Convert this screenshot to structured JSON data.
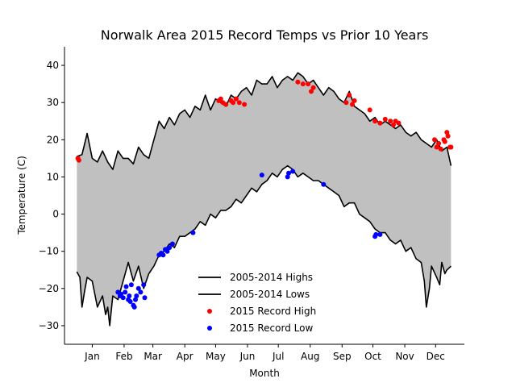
{
  "chart_data": {
    "type": "line",
    "title": "Norwalk Area 2015 Record Temps vs Prior 10 Years",
    "xlabel": "Month",
    "ylabel": "Temperature (C)",
    "xlim": [
      -12,
      377
    ],
    "ylim": [
      -35,
      45
    ],
    "grid": false,
    "legend_position": "lower-center",
    "x_ticks": [
      {
        "day": 15,
        "label": "Jan"
      },
      {
        "day": 46,
        "label": "Feb"
      },
      {
        "day": 74,
        "label": "Mar"
      },
      {
        "day": 105,
        "label": "Apr"
      },
      {
        "day": 135,
        "label": "May"
      },
      {
        "day": 166,
        "label": "Jun"
      },
      {
        "day": 196,
        "label": "Jul"
      },
      {
        "day": 227,
        "label": "Aug"
      },
      {
        "day": 258,
        "label": "Sep"
      },
      {
        "day": 288,
        "label": "Oct"
      },
      {
        "day": 319,
        "label": "Nov"
      },
      {
        "day": 349,
        "label": "Dec"
      }
    ],
    "y_ticks": [
      -30,
      -20,
      -10,
      0,
      10,
      20,
      30,
      40
    ],
    "fill_color": "#c0c0c0",
    "series": [
      {
        "name": "2005-2014 Highs",
        "kind": "line",
        "color": "#000000",
        "points": [
          [
            0,
            15.5
          ],
          [
            5,
            16
          ],
          [
            10,
            21.7
          ],
          [
            15,
            15
          ],
          [
            20,
            14
          ],
          [
            25,
            17
          ],
          [
            30,
            14
          ],
          [
            35,
            12
          ],
          [
            40,
            17
          ],
          [
            45,
            15
          ],
          [
            50,
            15
          ],
          [
            55,
            13.5
          ],
          [
            60,
            18
          ],
          [
            65,
            16
          ],
          [
            70,
            15
          ],
          [
            75,
            20
          ],
          [
            80,
            25
          ],
          [
            85,
            23
          ],
          [
            90,
            26
          ],
          [
            95,
            24
          ],
          [
            100,
            27
          ],
          [
            105,
            28
          ],
          [
            110,
            26
          ],
          [
            115,
            29
          ],
          [
            120,
            28
          ],
          [
            125,
            32
          ],
          [
            130,
            28
          ],
          [
            135,
            31
          ],
          [
            140,
            30
          ],
          [
            145,
            29
          ],
          [
            150,
            32
          ],
          [
            155,
            31
          ],
          [
            160,
            33
          ],
          [
            165,
            34
          ],
          [
            170,
            32
          ],
          [
            175,
            36
          ],
          [
            180,
            35
          ],
          [
            185,
            35
          ],
          [
            190,
            37
          ],
          [
            195,
            34
          ],
          [
            200,
            36
          ],
          [
            205,
            37
          ],
          [
            210,
            36
          ],
          [
            215,
            38
          ],
          [
            220,
            37
          ],
          [
            225,
            35
          ],
          [
            230,
            36
          ],
          [
            235,
            34
          ],
          [
            240,
            32
          ],
          [
            245,
            34
          ],
          [
            250,
            33
          ],
          [
            255,
            31
          ],
          [
            260,
            30
          ],
          [
            265,
            33
          ],
          [
            270,
            29
          ],
          [
            275,
            28
          ],
          [
            280,
            27
          ],
          [
            285,
            25
          ],
          [
            290,
            26
          ],
          [
            295,
            24
          ],
          [
            300,
            25
          ],
          [
            305,
            24
          ],
          [
            310,
            23
          ],
          [
            315,
            24
          ],
          [
            320,
            22
          ],
          [
            325,
            21
          ],
          [
            330,
            22
          ],
          [
            335,
            20
          ],
          [
            340,
            19
          ],
          [
            345,
            18
          ],
          [
            350,
            20
          ],
          [
            355,
            17
          ],
          [
            360,
            18
          ],
          [
            364,
            13
          ]
        ]
      },
      {
        "name": "2005-2014 Lows",
        "kind": "line",
        "color": "#000000",
        "points": [
          [
            0,
            -15.5
          ],
          [
            3,
            -17
          ],
          [
            5,
            -25
          ],
          [
            8,
            -20
          ],
          [
            10,
            -17
          ],
          [
            15,
            -18
          ],
          [
            20,
            -25
          ],
          [
            25,
            -22
          ],
          [
            28,
            -27
          ],
          [
            30,
            -25
          ],
          [
            32,
            -30
          ],
          [
            35,
            -22
          ],
          [
            40,
            -23
          ],
          [
            45,
            -18
          ],
          [
            50,
            -13
          ],
          [
            55,
            -18
          ],
          [
            60,
            -14
          ],
          [
            65,
            -20
          ],
          [
            70,
            -16
          ],
          [
            75,
            -14
          ],
          [
            80,
            -11
          ],
          [
            85,
            -10
          ],
          [
            90,
            -8
          ],
          [
            95,
            -9
          ],
          [
            100,
            -6
          ],
          [
            105,
            -6
          ],
          [
            110,
            -5
          ],
          [
            115,
            -4
          ],
          [
            120,
            -2
          ],
          [
            125,
            -3
          ],
          [
            130,
            0
          ],
          [
            135,
            -1
          ],
          [
            140,
            1
          ],
          [
            145,
            1
          ],
          [
            150,
            2
          ],
          [
            155,
            4
          ],
          [
            160,
            3
          ],
          [
            165,
            5
          ],
          [
            170,
            7
          ],
          [
            175,
            6
          ],
          [
            180,
            8
          ],
          [
            185,
            9
          ],
          [
            190,
            11
          ],
          [
            195,
            10
          ],
          [
            200,
            12
          ],
          [
            205,
            13
          ],
          [
            210,
            12
          ],
          [
            215,
            10
          ],
          [
            220,
            11
          ],
          [
            225,
            10
          ],
          [
            230,
            9
          ],
          [
            235,
            9
          ],
          [
            240,
            8
          ],
          [
            245,
            7
          ],
          [
            250,
            6
          ],
          [
            255,
            5
          ],
          [
            260,
            2
          ],
          [
            265,
            3
          ],
          [
            270,
            3
          ],
          [
            275,
            0
          ],
          [
            280,
            -1
          ],
          [
            285,
            -2
          ],
          [
            290,
            -4
          ],
          [
            295,
            -5
          ],
          [
            300,
            -5
          ],
          [
            305,
            -7
          ],
          [
            310,
            -8
          ],
          [
            315,
            -7
          ],
          [
            320,
            -10
          ],
          [
            325,
            -9
          ],
          [
            330,
            -12
          ],
          [
            335,
            -13
          ],
          [
            338,
            -18
          ],
          [
            340,
            -25
          ],
          [
            343,
            -20
          ],
          [
            345,
            -14
          ],
          [
            350,
            -17
          ],
          [
            353,
            -19
          ],
          [
            355,
            -13
          ],
          [
            358,
            -16
          ],
          [
            360,
            -15
          ],
          [
            364,
            -14
          ]
        ]
      },
      {
        "name": "2015 Record High",
        "kind": "scatter",
        "color": "#ff0000",
        "points": [
          [
            1,
            15
          ],
          [
            2,
            14.5
          ],
          [
            138,
            30.5
          ],
          [
            140,
            31
          ],
          [
            142,
            30
          ],
          [
            145,
            29.5
          ],
          [
            150,
            30.5
          ],
          [
            152,
            30
          ],
          [
            155,
            31
          ],
          [
            158,
            30
          ],
          [
            163,
            29.5
          ],
          [
            215,
            35.5
          ],
          [
            220,
            35
          ],
          [
            225,
            35
          ],
          [
            228,
            33
          ],
          [
            230,
            34
          ],
          [
            262,
            30
          ],
          [
            265,
            32
          ],
          [
            268,
            29.5
          ],
          [
            270,
            30.5
          ],
          [
            285,
            28
          ],
          [
            290,
            25
          ],
          [
            295,
            24.5
          ],
          [
            300,
            25.5
          ],
          [
            305,
            25
          ],
          [
            308,
            24
          ],
          [
            310,
            25
          ],
          [
            313,
            24.5
          ],
          [
            348,
            20
          ],
          [
            350,
            18
          ],
          [
            352,
            19
          ],
          [
            354,
            17.5
          ],
          [
            357,
            20
          ],
          [
            358,
            19.5
          ],
          [
            360,
            22
          ],
          [
            361,
            21
          ],
          [
            363,
            18
          ],
          [
            364,
            18
          ]
        ]
      },
      {
        "name": "2015 Record Low",
        "kind": "scatter",
        "color": "#0000ff",
        "points": [
          [
            40,
            -21
          ],
          [
            42,
            -22
          ],
          [
            43,
            -21.5
          ],
          [
            45,
            -22.5
          ],
          [
            47,
            -21
          ],
          [
            48,
            -19.5
          ],
          [
            50,
            -23
          ],
          [
            51,
            -22
          ],
          [
            52,
            -23.5
          ],
          [
            53,
            -19
          ],
          [
            55,
            -24.5
          ],
          [
            56,
            -25
          ],
          [
            57,
            -23
          ],
          [
            58,
            -22
          ],
          [
            60,
            -20
          ],
          [
            62,
            -21
          ],
          [
            65,
            -19
          ],
          [
            66,
            -22.5
          ],
          [
            80,
            -11
          ],
          [
            82,
            -10.5
          ],
          [
            84,
            -11
          ],
          [
            86,
            -9.5
          ],
          [
            88,
            -10
          ],
          [
            90,
            -9
          ],
          [
            93,
            -8
          ],
          [
            113,
            -5
          ],
          [
            180,
            10.5
          ],
          [
            205,
            10
          ],
          [
            206,
            11
          ],
          [
            210,
            11.5
          ],
          [
            240,
            8
          ],
          [
            290,
            -6
          ],
          [
            291,
            -5.5
          ],
          [
            295,
            -5.5
          ]
        ]
      }
    ]
  }
}
